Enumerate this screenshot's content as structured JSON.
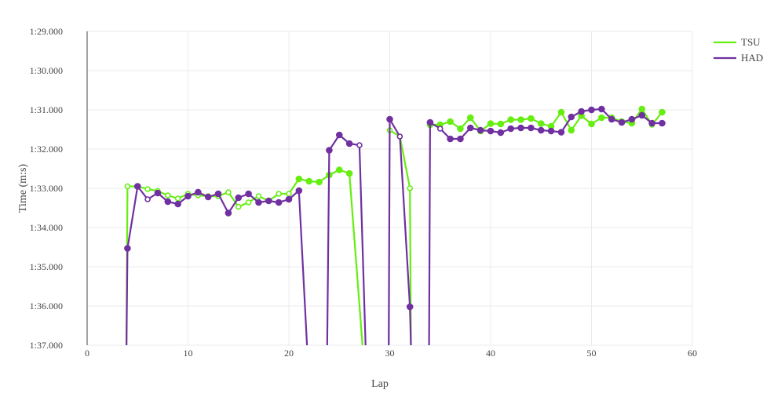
{
  "chart_data": {
    "type": "line",
    "xlabel": "Lap",
    "ylabel": "Time (m:s)",
    "xlim": [
      0,
      60
    ],
    "ylim": [
      89,
      97
    ],
    "y_reversed": true,
    "grid": true,
    "legend_position": "top-right",
    "x_ticks": [
      0,
      10,
      20,
      30,
      40,
      50,
      60
    ],
    "x_tick_labels": [
      "0",
      "10",
      "20",
      "30",
      "40",
      "50",
      "60"
    ],
    "y_ticks": [
      89,
      90,
      91,
      92,
      93,
      94,
      95,
      96,
      97
    ],
    "y_tick_labels": [
      "1:29.000",
      "1:30.000",
      "1:31.000",
      "1:32.000",
      "1:33.000",
      "1:34.000",
      "1:35.000",
      "1:36.000",
      "1:37.000"
    ],
    "series": [
      {
        "name": "TSU",
        "color": "#66ee11",
        "segments": [
          {
            "x": [
              3.9,
              4,
              5,
              6,
              7,
              8,
              9,
              10,
              11,
              12,
              13,
              14,
              15,
              16,
              17,
              18,
              19,
              20,
              21,
              22,
              23,
              24,
              25,
              26,
              27.3
            ],
            "y": [
              97,
              92.95,
              92.95,
              93.02,
              93.07,
              93.18,
              93.26,
              93.14,
              93.18,
              93.2,
              93.2,
              93.1,
              93.47,
              93.36,
              93.2,
              93.32,
              93.14,
              93.14,
              92.76,
              92.82,
              92.84,
              92.66,
              92.53,
              92.62,
              97
            ],
            "open": [
              false,
              true,
              false,
              true,
              true,
              true,
              true,
              true,
              true,
              true,
              true,
              true,
              true,
              true,
              true,
              true,
              true,
              true,
              false,
              false,
              false,
              false,
              false,
              false,
              false
            ]
          },
          {
            "x": [
              30,
              31,
              32,
              32.1
            ],
            "y": [
              91.52,
              91.68,
              93.0,
              97
            ],
            "open": [
              true,
              true,
              true,
              false
            ]
          },
          {
            "x": [
              34,
              35,
              36,
              37,
              38,
              39,
              40,
              41,
              42,
              43,
              44,
              45,
              46,
              47,
              48,
              49,
              50,
              51,
              52,
              53,
              54,
              55,
              56,
              57
            ],
            "y": [
              91.38,
              91.38,
              91.3,
              91.48,
              91.2,
              91.54,
              91.35,
              91.36,
              91.25,
              91.25,
              91.22,
              91.35,
              91.42,
              91.06,
              91.52,
              91.15,
              91.36,
              91.2,
              91.2,
              91.3,
              91.34,
              90.98,
              91.38,
              91.06
            ],
            "open": [
              false,
              false,
              false,
              false,
              false,
              false,
              false,
              false,
              false,
              false,
              false,
              false,
              false,
              false,
              false,
              false,
              false,
              false,
              false,
              false,
              false,
              false,
              true,
              false
            ]
          }
        ]
      },
      {
        "name": "HAD",
        "color": "#7030a0",
        "segments": [
          {
            "x": [
              3.9,
              4,
              5,
              6,
              7,
              8,
              9,
              10,
              11,
              12,
              13,
              14,
              15,
              16,
              17,
              18,
              19,
              20,
              21,
              21.8
            ],
            "y": [
              97,
              94.53,
              92.95,
              93.28,
              93.12,
              93.34,
              93.4,
              93.2,
              93.1,
              93.22,
              93.14,
              93.63,
              93.24,
              93.14,
              93.36,
              93.32,
              93.36,
              93.28,
              93.06,
              97
            ],
            "open": [
              false,
              false,
              false,
              true,
              false,
              false,
              false,
              false,
              false,
              false,
              false,
              false,
              false,
              false,
              false,
              false,
              false,
              false,
              false,
              false
            ]
          },
          {
            "x": [
              23.8,
              24,
              25,
              26,
              27,
              27.6
            ],
            "y": [
              97,
              92.03,
              91.64,
              91.86,
              91.9,
              97
            ],
            "open": [
              false,
              false,
              false,
              false,
              true,
              false
            ]
          },
          {
            "x": [
              29.9,
              30,
              31,
              32,
              32.1
            ],
            "y": [
              97,
              91.24,
              91.68,
              96.02,
              97
            ],
            "open": [
              false,
              false,
              true,
              false,
              false
            ]
          },
          {
            "x": [
              33.9,
              34,
              35,
              36,
              37,
              38,
              39,
              40,
              41,
              42,
              43,
              44,
              45,
              46,
              47,
              48,
              49,
              50,
              51,
              52,
              53,
              54,
              55,
              56,
              57
            ],
            "y": [
              97,
              91.32,
              91.48,
              91.74,
              91.74,
              91.46,
              91.52,
              91.54,
              91.58,
              91.48,
              91.46,
              91.46,
              91.52,
              91.54,
              91.57,
              91.18,
              91.04,
              91.0,
              90.98,
              91.24,
              91.32,
              91.24,
              91.14,
              91.34,
              91.34
            ],
            "open": [
              false,
              false,
              true,
              false,
              false,
              false,
              false,
              false,
              false,
              false,
              false,
              false,
              false,
              false,
              false,
              false,
              false,
              false,
              false,
              false,
              false,
              false,
              false,
              false,
              false
            ]
          }
        ]
      }
    ]
  }
}
